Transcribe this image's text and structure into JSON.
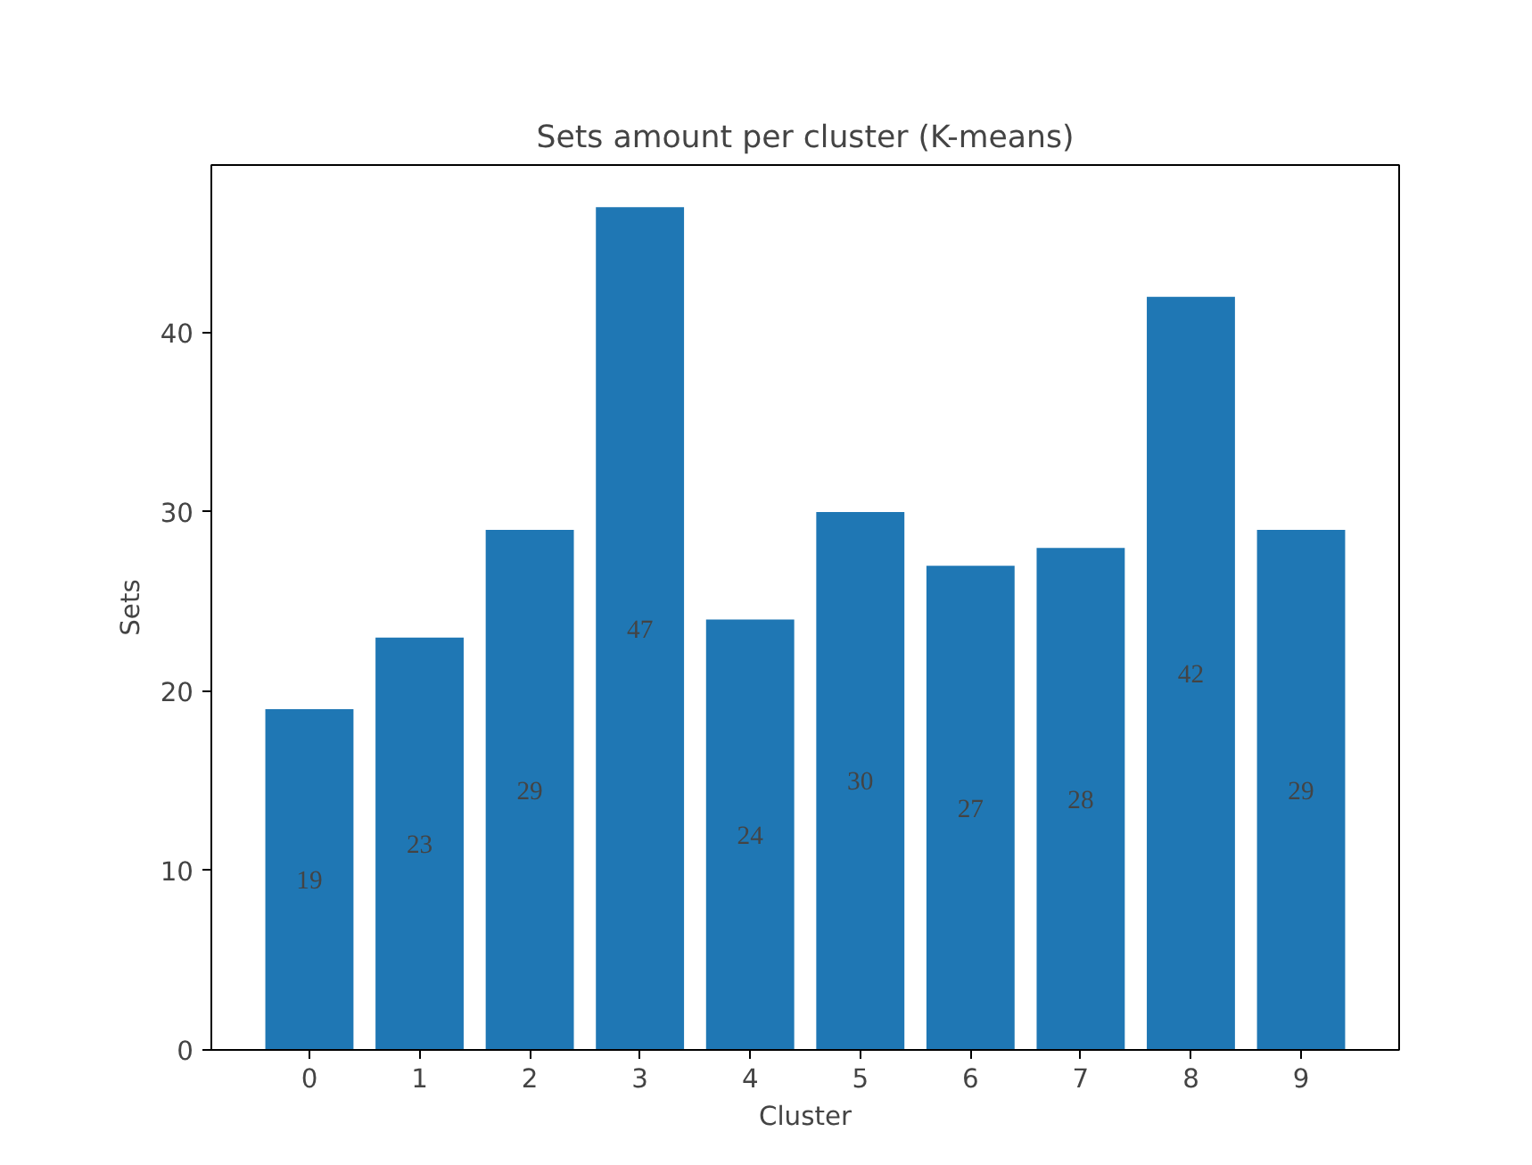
{
  "chart_data": {
    "type": "bar",
    "title": "Sets amount per cluster (K-means)",
    "xlabel": "Cluster",
    "ylabel": "Sets",
    "categories": [
      "0",
      "1",
      "2",
      "3",
      "4",
      "5",
      "6",
      "7",
      "8",
      "9"
    ],
    "values": [
      19,
      23,
      29,
      47,
      24,
      30,
      27,
      28,
      42,
      29
    ],
    "color": "#1f77b4",
    "ylim": [
      0,
      49.35
    ],
    "yticks": [
      0,
      10,
      20,
      30,
      40
    ],
    "data_labels": true,
    "grid": false
  }
}
